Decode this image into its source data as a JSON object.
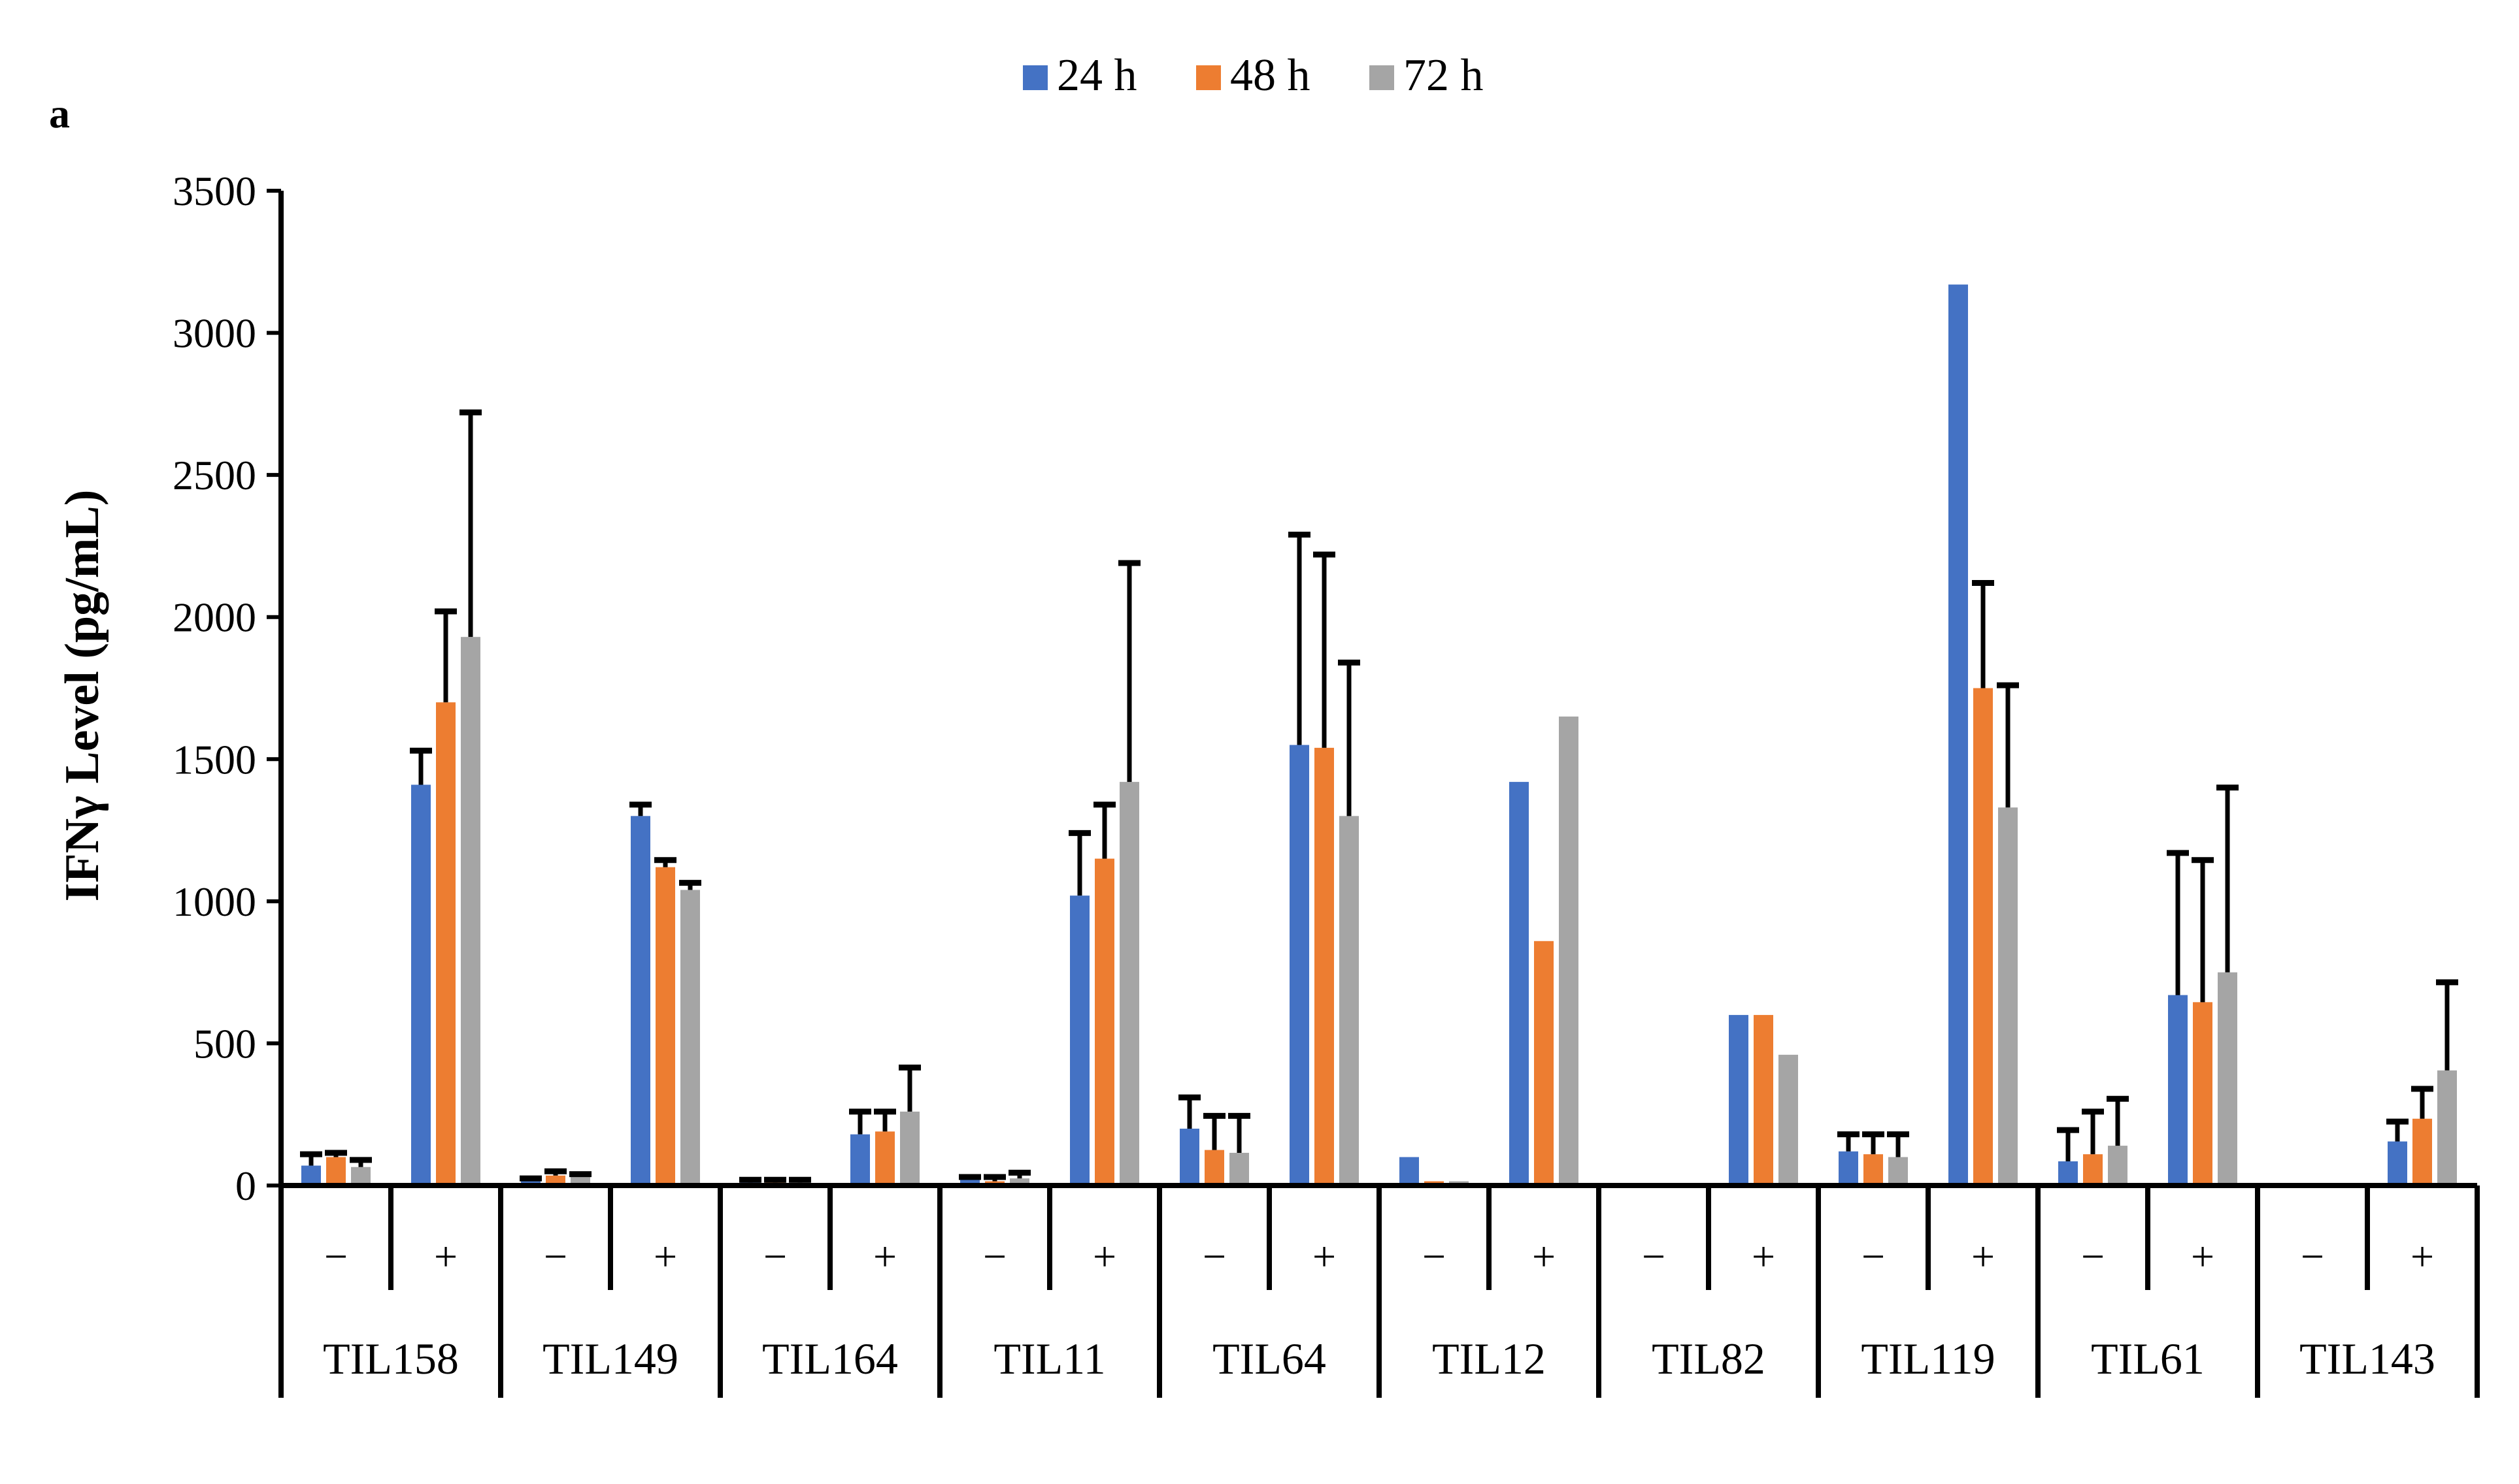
{
  "panel_label": "a",
  "chart_data": {
    "type": "bar",
    "title": "",
    "ylabel": "IFNγ Level (pg/mL)",
    "xlabel": "",
    "ylim": [
      0,
      3500
    ],
    "yticks": [
      0,
      500,
      1000,
      1500,
      2000,
      2500,
      3000,
      3500
    ],
    "grid": false,
    "legend_position": "top-center",
    "groups": [
      "TIL158",
      "TIL149",
      "TIL164",
      "TIL11",
      "TIL64",
      "TIL12",
      "TIL82",
      "TIL119",
      "TIL61",
      "TIL143"
    ],
    "conditions": [
      "−",
      "+"
    ],
    "categories": [
      "TIL158 −",
      "TIL158 +",
      "TIL149 −",
      "TIL149 +",
      "TIL164 −",
      "TIL164 +",
      "TIL11 −",
      "TIL11 +",
      "TIL64 −",
      "TIL64 +",
      "TIL12 −",
      "TIL12 +",
      "TIL82 −",
      "TIL82 +",
      "TIL119 −",
      "TIL119 +",
      "TIL61 −",
      "TIL61 +",
      "TIL143 −",
      "TIL143 +"
    ],
    "series": [
      {
        "name": "24 h",
        "color": "#4472C4",
        "values": [
          70,
          1410,
          15,
          1300,
          10,
          180,
          20,
          1020,
          200,
          1550,
          100,
          1420,
          0,
          600,
          120,
          3170,
          85,
          670,
          5,
          155
        ],
        "errors": [
          40,
          120,
          10,
          40,
          10,
          80,
          10,
          220,
          110,
          740,
          0,
          0,
          0,
          0,
          60,
          0,
          110,
          500,
          0,
          70
        ]
      },
      {
        "name": "48 h",
        "color": "#ED7D31",
        "values": [
          100,
          1700,
          35,
          1120,
          10,
          190,
          15,
          1150,
          125,
          1540,
          15,
          860,
          0,
          600,
          110,
          1750,
          110,
          645,
          5,
          235
        ],
        "errors": [
          15,
          320,
          15,
          25,
          10,
          70,
          15,
          190,
          120,
          680,
          0,
          0,
          0,
          0,
          70,
          370,
          150,
          500,
          0,
          105
        ]
      },
      {
        "name": "72 h",
        "color": "#A5A5A5",
        "values": [
          65,
          1930,
          30,
          1040,
          10,
          260,
          25,
          1420,
          115,
          1300,
          15,
          1650,
          0,
          460,
          100,
          1330,
          140,
          750,
          5,
          405
        ],
        "errors": [
          25,
          790,
          10,
          25,
          10,
          155,
          20,
          770,
          130,
          540,
          0,
          0,
          0,
          0,
          80,
          430,
          165,
          650,
          0,
          310
        ]
      }
    ]
  }
}
